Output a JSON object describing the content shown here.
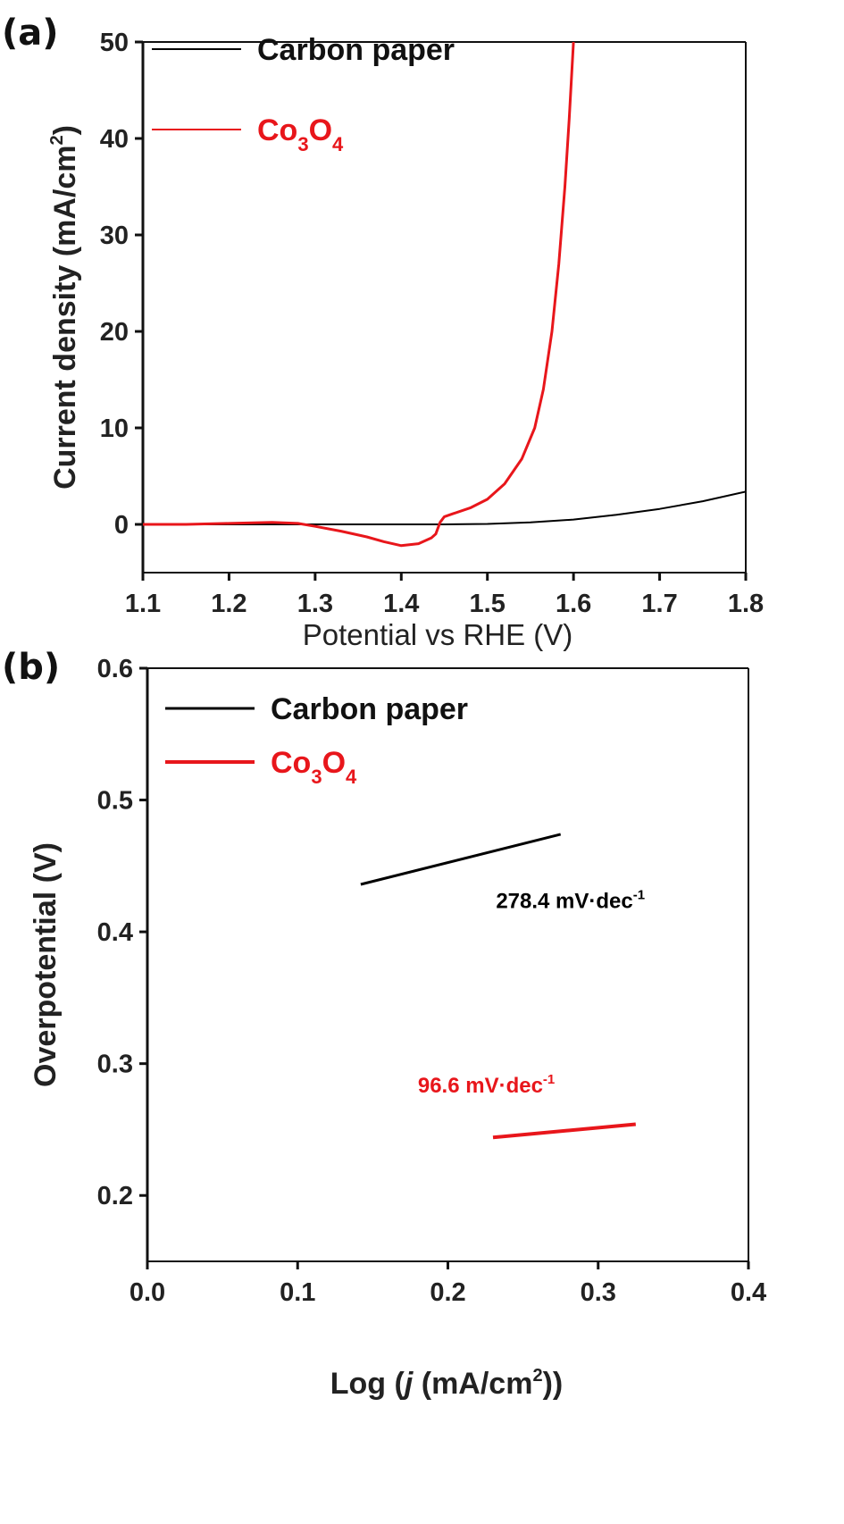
{
  "chart_data": [
    {
      "type": "line",
      "panel_label": "(a)",
      "xlabel": "Potential vs RHE (V)",
      "ylabel": "Current density (mA/cm",
      "ylabel_sup": "2",
      "ylabel_end": ")",
      "xlim": [
        1.1,
        1.8
      ],
      "ylim": [
        -5,
        50
      ],
      "xticks": [
        "1.1",
        "1.2",
        "1.3",
        "1.4",
        "1.5",
        "1.6",
        "1.7",
        "1.8"
      ],
      "yticks": [
        "0",
        "10",
        "20",
        "30",
        "40",
        "50"
      ],
      "legend_placement": "top-left",
      "series": [
        {
          "name": "Carbon paper",
          "color": "#000000",
          "x": [
            1.1,
            1.2,
            1.3,
            1.4,
            1.45,
            1.5,
            1.55,
            1.6,
            1.65,
            1.7,
            1.75,
            1.8
          ],
          "y": [
            0,
            0,
            0,
            0,
            0,
            0.05,
            0.2,
            0.5,
            1.0,
            1.6,
            2.4,
            3.4
          ]
        },
        {
          "name": "Co3O4",
          "name_parts": [
            "Co",
            "3",
            "O",
            "4"
          ],
          "color": "#e8161b",
          "x": [
            1.1,
            1.15,
            1.2,
            1.25,
            1.28,
            1.3,
            1.33,
            1.36,
            1.38,
            1.4,
            1.42,
            1.435,
            1.44,
            1.445,
            1.45,
            1.46,
            1.48,
            1.5,
            1.52,
            1.54,
            1.555,
            1.565,
            1.575,
            1.583,
            1.59,
            1.595,
            1.6
          ],
          "y": [
            0,
            0,
            0.1,
            0.2,
            0.1,
            -0.2,
            -0.7,
            -1.3,
            -1.8,
            -2.2,
            -2.0,
            -1.4,
            -1.0,
            0.2,
            0.8,
            1.1,
            1.7,
            2.6,
            4.2,
            6.8,
            10,
            14,
            20,
            27,
            35,
            42,
            50
          ]
        }
      ]
    },
    {
      "type": "line",
      "panel_label": "(b)",
      "xlabel_pre": "Log (",
      "xlabel_j": "j",
      "xlabel_mid": " (mA/cm",
      "xlabel_sup": "2",
      "xlabel_end": "))",
      "ylabel": "Overpotential (V)",
      "xlim": [
        0.0,
        0.4
      ],
      "ylim": [
        0.15,
        0.6
      ],
      "xticks": [
        "0.0",
        "0.1",
        "0.2",
        "0.3",
        "0.4"
      ],
      "yticks": [
        "0.2",
        "0.3",
        "0.4",
        "0.5",
        "0.6"
      ],
      "legend_placement": "top-left",
      "series": [
        {
          "name": "Carbon paper",
          "color": "#000000",
          "x": [
            0.142,
            0.275
          ],
          "y": [
            0.436,
            0.474
          ],
          "annotation": {
            "value": "278.4 mV·dec",
            "sup": "-1",
            "at": [
              0.232,
              0.418
            ]
          }
        },
        {
          "name": "Co3O4",
          "name_parts": [
            "Co",
            "3",
            "O",
            "4"
          ],
          "color": "#e8161b",
          "x": [
            0.23,
            0.325
          ],
          "y": [
            0.244,
            0.254
          ],
          "annotation": {
            "value": "96.6 mV·dec",
            "sup": "-1",
            "at": [
              0.18,
              0.278
            ]
          }
        }
      ]
    }
  ]
}
